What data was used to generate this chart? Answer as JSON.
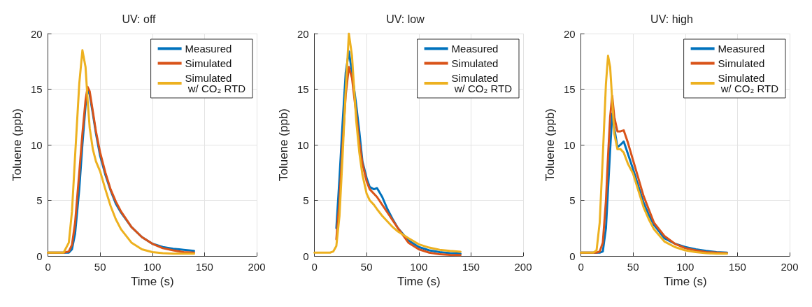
{
  "chart_data": [
    {
      "type": "line",
      "title": "UV: off",
      "xlabel": "Time (s)",
      "ylabel": "Toluene (ppb)",
      "xlim": [
        0,
        200
      ],
      "xticks": [
        0,
        50,
        100,
        150,
        200
      ],
      "ylim": [
        0,
        20
      ],
      "yticks": [
        0,
        5,
        10,
        15,
        20
      ],
      "grid": true,
      "legend": "top right",
      "x": [
        0,
        15,
        20,
        23,
        26,
        30,
        33,
        36,
        38,
        40,
        43,
        46,
        50,
        55,
        60,
        65,
        70,
        80,
        90,
        100,
        110,
        120,
        130,
        140
      ],
      "series": [
        {
          "name": "Measured",
          "color": "#0072bd",
          "values": [
            0.3,
            0.3,
            0.3,
            0.6,
            2,
            6,
            10,
            13.5,
            15,
            14.5,
            12.8,
            11,
            9,
            7.3,
            5.9,
            4.7,
            3.9,
            2.6,
            1.7,
            1.1,
            0.8,
            0.65,
            0.55,
            0.45
          ]
        },
        {
          "name": "Simulated",
          "color": "#d95319",
          "values": [
            0.3,
            0.3,
            0.4,
            1,
            3,
            7.5,
            11,
            14,
            15.2,
            14.8,
            13,
            11.2,
            9.3,
            7.5,
            6,
            4.9,
            4,
            2.6,
            1.7,
            1.1,
            0.7,
            0.5,
            0.35,
            0.3
          ]
        },
        {
          "name": "Simulated\n w/ CO₂ RTD",
          "color": "#edb120",
          "values": [
            0.3,
            0.3,
            1.2,
            4,
            9,
            15.5,
            18.5,
            17,
            14,
            11.5,
            9.6,
            8.5,
            7.6,
            6,
            4.5,
            3.3,
            2.4,
            1.2,
            0.6,
            0.35,
            0.25,
            0.2,
            0.2,
            0.2
          ]
        }
      ]
    },
    {
      "type": "line",
      "title": "UV: low",
      "xlabel": "Time (s)",
      "ylabel": "Toluene (ppb)",
      "xlim": [
        0,
        200
      ],
      "xticks": [
        0,
        50,
        100,
        150,
        200
      ],
      "ylim": [
        0,
        20
      ],
      "yticks": [
        0,
        5,
        10,
        15,
        20
      ],
      "grid": true,
      "legend": "top right",
      "x": [
        0,
        15,
        18,
        21,
        24,
        27,
        30,
        33,
        36,
        40,
        43,
        46,
        50,
        53,
        57,
        60,
        65,
        70,
        75,
        80,
        90,
        100,
        110,
        120,
        130,
        140
      ],
      "series": [
        {
          "name": "Measured",
          "color": "#0072bd",
          "values": [
            null,
            null,
            null,
            2.5,
            7,
            12,
            16.5,
            18.4,
            16.5,
            13.6,
            11.2,
            8.5,
            7,
            6.2,
            6,
            6.1,
            5.3,
            4.2,
            3.3,
            2.5,
            1.4,
            0.8,
            0.5,
            0.35,
            0.25,
            0.2
          ]
        },
        {
          "name": "Simulated",
          "color": "#d95319",
          "values": [
            null,
            null,
            null,
            1.5,
            5,
            10,
            14.5,
            17,
            16,
            12.8,
            10.2,
            8.3,
            6.7,
            6,
            5.6,
            5.3,
            4.6,
            3.9,
            3.2,
            2.5,
            1.2,
            0.6,
            0.3,
            0.15,
            0.1,
            0.08
          ]
        },
        {
          "name": "Simulated\n w/ CO₂ RTD",
          "color": "#edb120",
          "values": [
            0.3,
            0.3,
            0.4,
            0.9,
            3.6,
            9,
            15,
            20,
            18,
            12.2,
            9.3,
            7.3,
            5.6,
            5,
            4.6,
            4.2,
            3.6,
            3.1,
            2.6,
            2.2,
            1.6,
            1.05,
            0.75,
            0.55,
            0.45,
            0.38
          ]
        }
      ]
    },
    {
      "type": "line",
      "title": "UV: high",
      "xlabel": "Time (s)",
      "ylabel": "Toluene (ppb)",
      "xlim": [
        0,
        200
      ],
      "xticks": [
        0,
        50,
        100,
        150,
        200
      ],
      "ylim": [
        0,
        20
      ],
      "yticks": [
        0,
        5,
        10,
        15,
        20
      ],
      "grid": true,
      "legend": "top right",
      "x": [
        0,
        12,
        15,
        18,
        21,
        24,
        26,
        28,
        30,
        32,
        35,
        38,
        41,
        45,
        50,
        55,
        60,
        65,
        70,
        80,
        90,
        100,
        110,
        120,
        130,
        140
      ],
      "series": [
        {
          "name": "Measured",
          "color": "#0072bd",
          "values": [
            0.3,
            0.3,
            0.3,
            0.3,
            0.4,
            2.5,
            6,
            9.5,
            12.8,
            11.5,
            9.8,
            10,
            10.3,
            9.2,
            7.8,
            6.3,
            4.8,
            3.7,
            2.8,
            1.6,
            1.1,
            0.8,
            0.6,
            0.45,
            0.35,
            0.3
          ]
        },
        {
          "name": "Simulated",
          "color": "#d95319",
          "values": [
            0.3,
            0.3,
            0.3,
            0.4,
            1.2,
            5,
            9,
            12.5,
            14.4,
            12.5,
            11.2,
            11.2,
            11.3,
            10.2,
            8.6,
            7,
            5.4,
            4.2,
            3,
            1.8,
            1.1,
            0.7,
            0.5,
            0.35,
            0.3,
            0.25
          ]
        },
        {
          "name": "Simulated\n w/ CO₂ RTD",
          "color": "#edb120",
          "values": [
            0.3,
            0.3,
            0.5,
            3,
            9,
            15.5,
            18,
            17,
            14,
            11,
            9.6,
            9.6,
            9.3,
            8.3,
            7.4,
            5.9,
            4.4,
            3.3,
            2.4,
            1.3,
            0.8,
            0.5,
            0.35,
            0.25,
            0.2,
            0.2
          ]
        }
      ]
    }
  ]
}
